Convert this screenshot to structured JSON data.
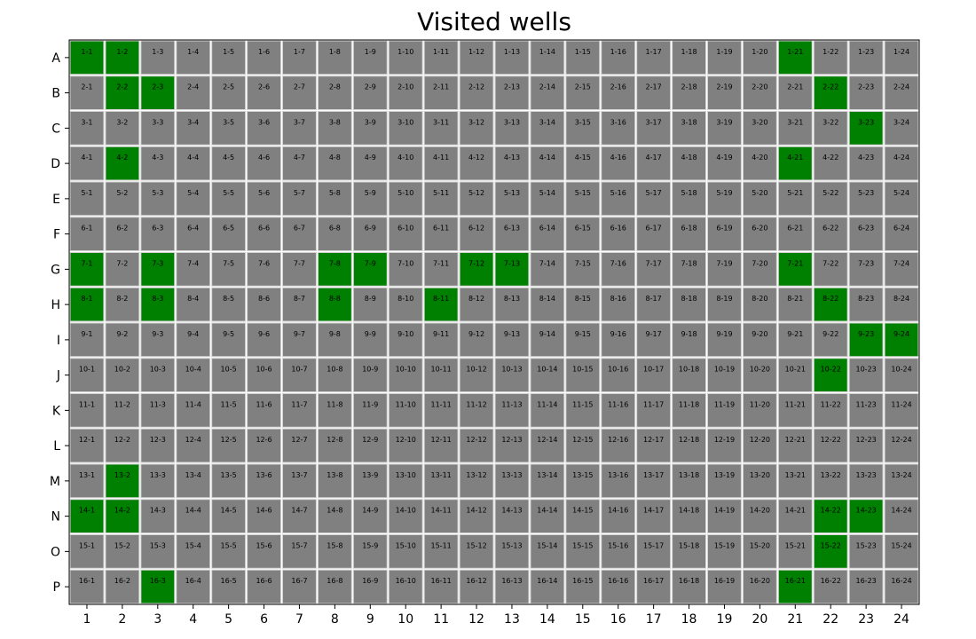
{
  "title": "Visited wells",
  "colors": {
    "visited": "#008000",
    "unvisited": "#808080",
    "border": "#d3d3d3",
    "text": "#000000"
  },
  "chart_data": {
    "type": "heatmap",
    "title": "Visited wells",
    "xlabel": "",
    "ylabel": "",
    "rows": [
      "A",
      "B",
      "C",
      "D",
      "E",
      "F",
      "G",
      "H",
      "I",
      "J",
      "K",
      "L",
      "M",
      "N",
      "O",
      "P"
    ],
    "columns": [
      1,
      2,
      3,
      4,
      5,
      6,
      7,
      8,
      9,
      10,
      11,
      12,
      13,
      14,
      15,
      16,
      17,
      18,
      19,
      20,
      21,
      22,
      23,
      24
    ],
    "cell_label_format": "{row_number}-{column}",
    "visited": [
      [
        1,
        1
      ],
      [
        1,
        2
      ],
      [
        1,
        21
      ],
      [
        2,
        2
      ],
      [
        2,
        3
      ],
      [
        2,
        22
      ],
      [
        3,
        23
      ],
      [
        4,
        2
      ],
      [
        4,
        21
      ],
      [
        7,
        1
      ],
      [
        7,
        3
      ],
      [
        7,
        8
      ],
      [
        7,
        9
      ],
      [
        7,
        12
      ],
      [
        7,
        13
      ],
      [
        7,
        21
      ],
      [
        8,
        1
      ],
      [
        8,
        3
      ],
      [
        8,
        8
      ],
      [
        8,
        11
      ],
      [
        8,
        22
      ],
      [
        9,
        23
      ],
      [
        9,
        24
      ],
      [
        10,
        22
      ],
      [
        13,
        2
      ],
      [
        14,
        1
      ],
      [
        14,
        2
      ],
      [
        14,
        22
      ],
      [
        14,
        23
      ],
      [
        15,
        22
      ],
      [
        16,
        3
      ],
      [
        16,
        21
      ]
    ],
    "grid": false
  }
}
